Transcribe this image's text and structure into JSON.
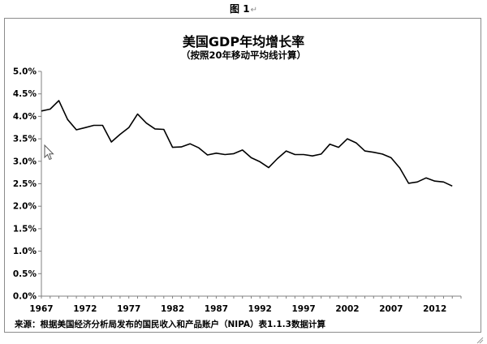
{
  "figure_caption": "图 1",
  "return_mark": "↵",
  "icons": {
    "cursor": "mouse-pointer-icon",
    "resize": "resize-handle-icon"
  },
  "chart_data": {
    "type": "line",
    "title": "美国GDP年均增长率",
    "subtitle": "（按照20年移动平均线计算）",
    "xlabel": "",
    "ylabel": "",
    "x_tick_labels": [
      "1967",
      "1972",
      "1977",
      "1982",
      "1987",
      "1992",
      "1997",
      "2002",
      "2007",
      "2012"
    ],
    "y_tick_labels": [
      "0.0%",
      "0.5%",
      "1.0%",
      "1.5%",
      "2.0%",
      "2.5%",
      "3.0%",
      "3.5%",
      "4.0%",
      "4.5%",
      "5.0%"
    ],
    "xlim": [
      1967,
      2015
    ],
    "ylim": [
      0,
      5.0
    ],
    "grid": false,
    "line_color": "#000000",
    "series": [
      {
        "x": [
          1967,
          1968,
          1969,
          1970,
          1971,
          1972,
          1973,
          1974,
          1975,
          1976,
          1977,
          1978,
          1979,
          1980,
          1981,
          1982,
          1983,
          1984,
          1985,
          1986,
          1987,
          1988,
          1989,
          1990,
          1991,
          1992,
          1993,
          1994,
          1995,
          1996,
          1997,
          1998,
          1999,
          2000,
          2001,
          2002,
          2003,
          2004,
          2005,
          2006,
          2007,
          2008,
          2009,
          2010,
          2011,
          2012,
          2013,
          2014
        ],
        "y": [
          4.12,
          4.16,
          4.35,
          3.93,
          3.7,
          3.75,
          3.8,
          3.8,
          3.43,
          3.6,
          3.75,
          4.05,
          3.85,
          3.72,
          3.71,
          3.31,
          3.32,
          3.39,
          3.3,
          3.14,
          3.18,
          3.15,
          3.17,
          3.25,
          3.08,
          2.99,
          2.86,
          3.06,
          3.23,
          3.15,
          3.15,
          3.12,
          3.16,
          3.38,
          3.31,
          3.5,
          3.41,
          3.23,
          3.2,
          3.16,
          3.08,
          2.85,
          2.51,
          2.54,
          2.63,
          2.56,
          2.54,
          2.45
        ]
      }
    ]
  },
  "source_note": "来源：根据美国经济分析局发布的国民收入和产品账户（NIPA）表1.1.3数据计算"
}
